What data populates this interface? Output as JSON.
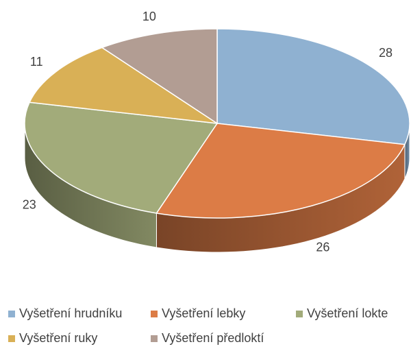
{
  "chart_data": {
    "type": "pie3d",
    "categories": [
      "Vyšetření hrudníku",
      "Vyšetření lebky",
      "Vyšetření lokte",
      "Vyšetření ruky",
      "Vyšetření předloktí"
    ],
    "values": [
      28,
      26,
      23,
      11,
      10
    ],
    "colors": [
      "#8fb1d1",
      "#dc7c46",
      "#a2ab7a",
      "#d9b056",
      "#b29d93"
    ],
    "legend": "bottom"
  }
}
